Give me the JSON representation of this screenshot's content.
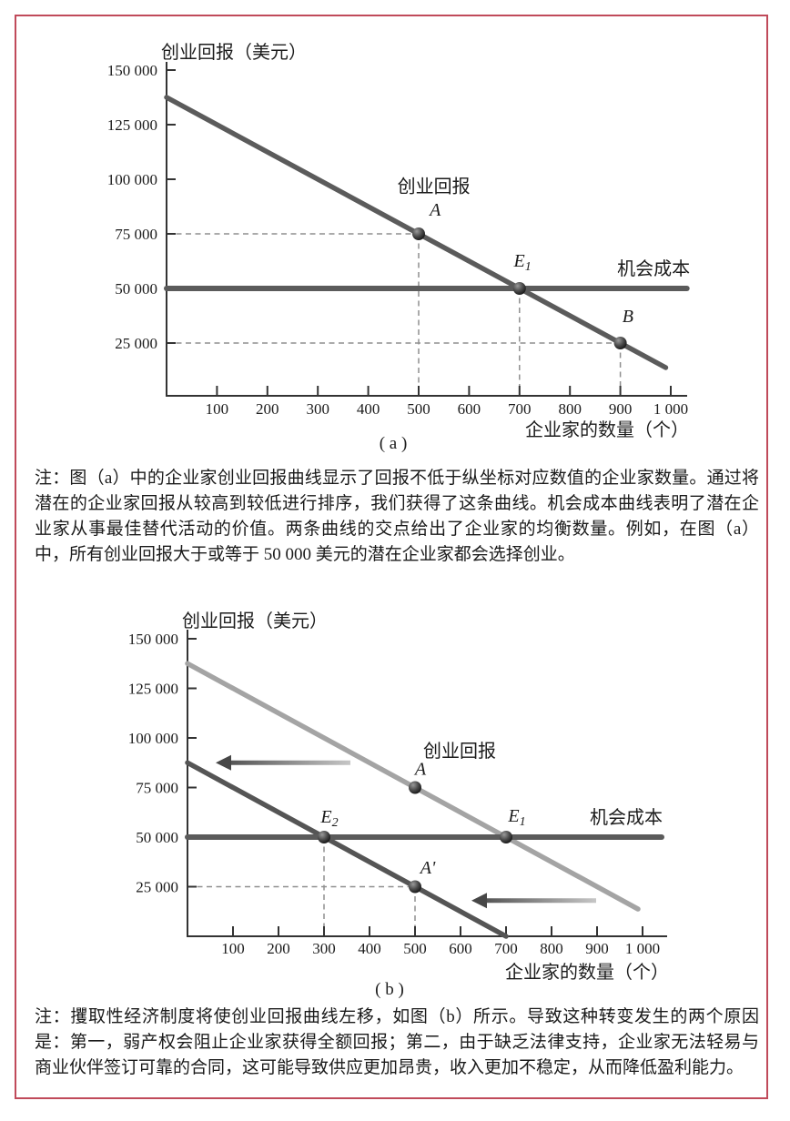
{
  "page": {
    "background": "#ffffff",
    "border_color": "#c04a5a"
  },
  "notes": [
    "注：图（a）中的企业家创业回报曲线显示了回报不低于纵坐标对应数值的企业家数量。通过将潜在的企业家回报从较高到较低进行排序，我们获得了这条曲线。机会成本曲线表明了潜在企业家从事最佳替代活动的价值。两条曲线的交点给出了企业家的均衡数量。例如，在图（a）中，所有创业回报大于或等于 50 000 美元的潜在企业家都会选择创业。",
    "注：攫取性经济制度将使创业回报曲线左移，如图（b）所示。导致这种转变发生的两个原因是：第一，弱产权会阻止企业家获得全额回报；第二，由于缺乏法律支持，企业家无法轻易与商业伙伴签订可靠的合同，这可能导致供应更加昂贵，收入更加不稳定，从而降低盈利能力。"
  ],
  "chart_data": [
    {
      "id": "a",
      "type": "line",
      "caption": "( a )",
      "ylabel": "创业回报（美元）",
      "xlabel": "企业家的数量（个）",
      "xlim": [
        0,
        1050
      ],
      "ylim": [
        0,
        150000
      ],
      "x_ticks": {
        "values": [
          100,
          200,
          300,
          400,
          500,
          600,
          700,
          800,
          900,
          1000
        ],
        "labels": [
          "100",
          "200",
          "300",
          "400",
          "500",
          "600",
          "700",
          "800",
          "900",
          "1 000"
        ]
      },
      "y_ticks": {
        "values": [
          25000,
          50000,
          75000,
          100000,
          125000,
          150000
        ],
        "labels": [
          "25 000",
          "50 000",
          "75 000",
          "100 000",
          "125 000",
          "150 000"
        ]
      },
      "series": [
        {
          "key": "return-curve",
          "color": "#5b5b5b",
          "width": 5.5,
          "points": [
            [
              0,
              137500
            ],
            [
              990,
              13750
            ]
          ]
        },
        {
          "key": "opportunity-cost-line",
          "color": "#5b5b5b",
          "width": 6,
          "points": [
            [
              0,
              50000
            ],
            [
              1032,
              50000
            ]
          ]
        }
      ],
      "labels": [
        {
          "key": "return-curve-label",
          "text": "创业回报",
          "x": 530,
          "y": 94000,
          "italic": false
        },
        {
          "key": "point-a-label",
          "text": "A",
          "x": 533,
          "y": 83300,
          "italic": true
        },
        {
          "key": "point-e1-label",
          "text": "E₁",
          "x": 706,
          "y": 60000,
          "italic": true
        },
        {
          "key": "point-b-label",
          "text": "B",
          "x": 915,
          "y": 34600,
          "italic": true
        },
        {
          "key": "opportunity-cost-label",
          "text": "机会成本",
          "x": 966,
          "y": 56300,
          "italic": false
        }
      ],
      "markers": [
        {
          "name": "A",
          "x": 500,
          "y": 75000
        },
        {
          "name": "E₁",
          "x": 700,
          "y": 50000
        },
        {
          "name": "B",
          "x": 900,
          "y": 25000
        }
      ],
      "guides": [
        {
          "type": "h",
          "y": 75000,
          "to_x": 500
        },
        {
          "type": "v",
          "x": 500,
          "from_y": 75000
        },
        {
          "type": "v",
          "x": 700,
          "from_y": 50000
        },
        {
          "type": "h",
          "y": 25000,
          "to_x": 900
        },
        {
          "type": "v",
          "x": 900,
          "from_y": 25000
        }
      ],
      "arrows": []
    },
    {
      "id": "b",
      "type": "line",
      "caption": "( b )",
      "ylabel": "创业回报（美元）",
      "xlabel": "企业家的数量（个）",
      "xlim": [
        0,
        1050
      ],
      "ylim": [
        0,
        150000
      ],
      "x_ticks": {
        "values": [
          100,
          200,
          300,
          400,
          500,
          600,
          700,
          800,
          900,
          1000
        ],
        "labels": [
          "100",
          "200",
          "300",
          "400",
          "500",
          "600",
          "700",
          "800",
          "900",
          "1 000"
        ]
      },
      "y_ticks": {
        "values": [
          25000,
          50000,
          75000,
          100000,
          125000,
          150000
        ],
        "labels": [
          "25 000",
          "50 000",
          "75 000",
          "100 000",
          "125 000",
          "150 000"
        ]
      },
      "series": [
        {
          "key": "return-curve-original",
          "color": "#a4a4a4",
          "width": 5.5,
          "points": [
            [
              0,
              137500
            ],
            [
              990,
              13750
            ]
          ]
        },
        {
          "key": "return-curve-shifted",
          "color": "#555555",
          "width": 5.5,
          "points": [
            [
              0,
              87500
            ],
            [
              700,
              0
            ]
          ]
        },
        {
          "key": "opportunity-cost-line",
          "color": "#5b5b5b",
          "width": 6,
          "points": [
            [
              0,
              50000
            ],
            [
              1042,
              50000
            ]
          ]
        }
      ],
      "labels": [
        {
          "key": "return-curve-label",
          "text": "创业回报",
          "x": 598,
          "y": 90400,
          "italic": false
        },
        {
          "key": "point-a-label",
          "text": "A",
          "x": 512,
          "y": 81500,
          "italic": true
        },
        {
          "key": "point-e2-label",
          "text": "E₂",
          "x": 312,
          "y": 57300,
          "italic": true
        },
        {
          "key": "point-e1-label",
          "text": "E₁",
          "x": 724,
          "y": 57800,
          "italic": true
        },
        {
          "key": "point-a-prime-label",
          "text": "A'",
          "x": 528,
          "y": 31650,
          "italic": true
        },
        {
          "key": "opportunity-cost-label",
          "text": "机会成本",
          "x": 964,
          "y": 56900,
          "italic": false
        }
      ],
      "markers": [
        {
          "name": "A",
          "x": 500,
          "y": 75000
        },
        {
          "name": "E₂",
          "x": 300,
          "y": 50000
        },
        {
          "name": "E₁",
          "x": 700,
          "y": 50000
        },
        {
          "name": "A'",
          "x": 500,
          "y": 25000
        }
      ],
      "guides": [
        {
          "type": "v",
          "x": 300,
          "from_y": 50000
        },
        {
          "type": "h",
          "y": 25000,
          "to_x": 500
        },
        {
          "type": "v",
          "x": 500,
          "from_y": 25000
        }
      ],
      "arrows": [
        {
          "name": "shift-left-arrow-upper",
          "y": 87500,
          "from_x": 358,
          "to_x": 62
        },
        {
          "name": "shift-left-arrow-lower",
          "y": 18000,
          "from_x": 898,
          "to_x": 624
        }
      ]
    }
  ]
}
